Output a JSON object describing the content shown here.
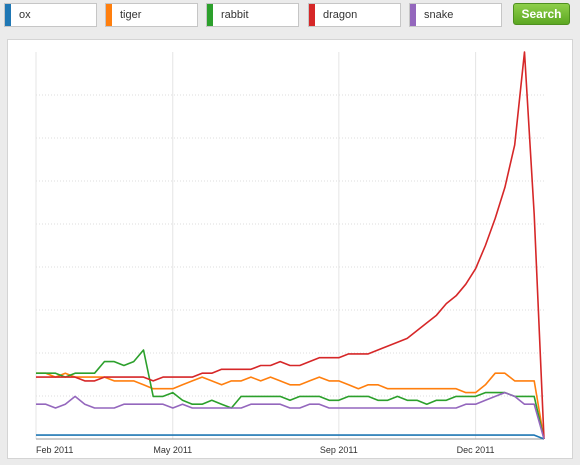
{
  "search": {
    "terms": [
      {
        "label": "ox",
        "color": "#1f77b4"
      },
      {
        "label": "tiger",
        "color": "#ff7f0e"
      },
      {
        "label": "rabbit",
        "color": "#2ca02c"
      },
      {
        "label": "dragon",
        "color": "#d62728"
      },
      {
        "label": "snake",
        "color": "#9467bd"
      }
    ],
    "button_label": "Search"
  },
  "chart_data": {
    "type": "line",
    "x_tick_labels": [
      "Feb 2011",
      "May 2011",
      "Sep 2011",
      "Dec 2011"
    ],
    "x_tick_positions": [
      0,
      14,
      31,
      45
    ],
    "ylim": [
      0,
      100
    ],
    "grid": true,
    "series": [
      {
        "name": "ox",
        "color": "#1f77b4",
        "values": [
          1,
          1,
          1,
          1,
          1,
          1,
          1,
          1,
          1,
          1,
          1,
          1,
          1,
          1,
          1,
          1,
          1,
          1,
          1,
          1,
          1,
          1,
          1,
          1,
          1,
          1,
          1,
          1,
          1,
          1,
          1,
          1,
          1,
          1,
          1,
          1,
          1,
          1,
          1,
          1,
          1,
          1,
          1,
          1,
          1,
          1,
          1,
          1,
          1,
          1,
          1,
          1,
          0
        ]
      },
      {
        "name": "tiger",
        "color": "#ff7f0e",
        "values": [
          17,
          17,
          16,
          17,
          16,
          16,
          16,
          16,
          15,
          15,
          15,
          14,
          13,
          13,
          13,
          14,
          15,
          16,
          15,
          14,
          15,
          15,
          16,
          15,
          16,
          15,
          14,
          14,
          15,
          16,
          15,
          15,
          14,
          13,
          14,
          14,
          13,
          13,
          13,
          13,
          13,
          13,
          13,
          13,
          12,
          12,
          14,
          17,
          17,
          15,
          15,
          15,
          0
        ]
      },
      {
        "name": "rabbit",
        "color": "#2ca02c",
        "values": [
          17,
          17,
          17,
          16,
          17,
          17,
          17,
          20,
          20,
          19,
          20,
          23,
          11,
          11,
          12,
          10,
          9,
          9,
          10,
          9,
          8,
          11,
          11,
          11,
          11,
          11,
          10,
          11,
          11,
          11,
          10,
          10,
          11,
          11,
          11,
          10,
          10,
          11,
          10,
          10,
          9,
          10,
          10,
          11,
          11,
          11,
          12,
          12,
          12,
          11,
          11,
          11,
          0
        ]
      },
      {
        "name": "dragon",
        "color": "#d62728",
        "values": [
          16,
          16,
          16,
          16,
          16,
          15,
          15,
          16,
          16,
          16,
          16,
          16,
          15,
          16,
          16,
          16,
          16,
          17,
          17,
          18,
          18,
          18,
          18,
          19,
          19,
          20,
          19,
          19,
          20,
          21,
          21,
          21,
          22,
          22,
          22,
          23,
          24,
          25,
          26,
          28,
          30,
          32,
          35,
          37,
          40,
          44,
          50,
          57,
          65,
          76,
          100,
          58,
          0
        ]
      },
      {
        "name": "snake",
        "color": "#9467bd",
        "values": [
          9,
          9,
          8,
          9,
          11,
          9,
          8,
          8,
          8,
          9,
          9,
          9,
          9,
          9,
          8,
          9,
          8,
          8,
          8,
          8,
          8,
          8,
          9,
          9,
          9,
          9,
          8,
          8,
          9,
          9,
          8,
          8,
          8,
          8,
          8,
          8,
          8,
          8,
          8,
          8,
          8,
          8,
          8,
          8,
          9,
          9,
          10,
          11,
          12,
          11,
          9,
          9,
          0
        ]
      }
    ]
  }
}
